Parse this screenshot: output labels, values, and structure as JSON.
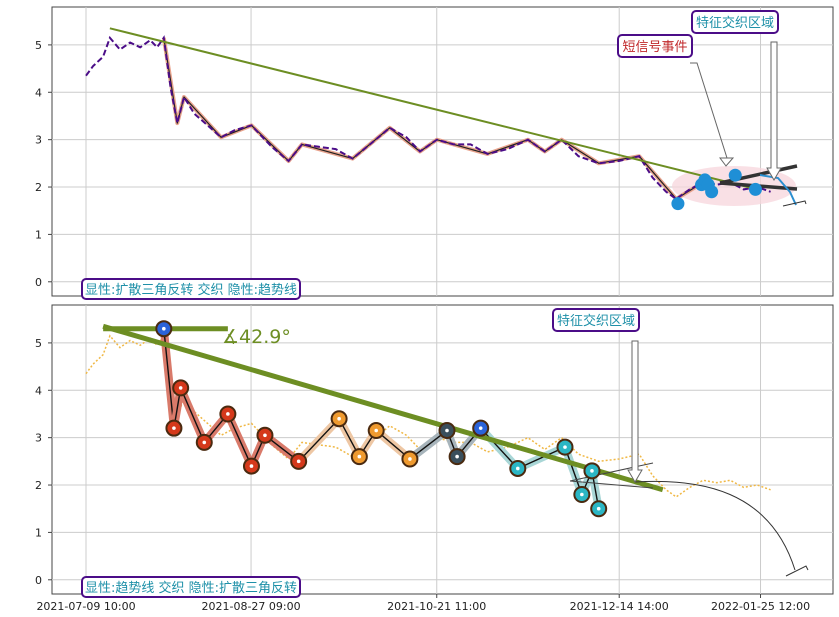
{
  "chart_data": [
    {
      "type": "line",
      "panel": "top",
      "ylim": [
        -0.3,
        5.8
      ],
      "y_ticks": [
        "0",
        "1",
        "2",
        "3",
        "4",
        "5"
      ],
      "x_range": [
        "2021-07-09 10:00",
        "2022-02-16 00:00"
      ],
      "price_series": [
        {
          "x": "2021-07-09 10:00",
          "y": 4.35
        },
        {
          "x": "2021-07-11 12:00",
          "y": 4.55
        },
        {
          "x": "2021-07-14 12:00",
          "y": 4.75
        },
        {
          "x": "2021-07-16 12:00",
          "y": 5.15
        },
        {
          "x": "2021-07-19 12:00",
          "y": 4.9
        },
        {
          "x": "2021-07-22 12:00",
          "y": 5.05
        },
        {
          "x": "2021-07-25 12:00",
          "y": 4.95
        },
        {
          "x": "2021-07-28 12:00",
          "y": 5.1
        },
        {
          "x": "2021-07-30 12:00",
          "y": 4.95
        },
        {
          "x": "2021-08-01 12:00",
          "y": 5.15
        },
        {
          "x": "2021-08-03 12:00",
          "y": 4.1
        },
        {
          "x": "2021-08-05 12:00",
          "y": 3.35
        },
        {
          "x": "2021-08-07 12:00",
          "y": 3.9
        },
        {
          "x": "2021-08-10 12:00",
          "y": 3.55
        },
        {
          "x": "2021-08-14 12:00",
          "y": 3.3
        },
        {
          "x": "2021-08-18 12:00",
          "y": 3.05
        },
        {
          "x": "2021-08-22 12:00",
          "y": 3.2
        },
        {
          "x": "2021-08-27 12:00",
          "y": 3.3
        },
        {
          "x": "2021-09-02 12:00",
          "y": 2.85
        },
        {
          "x": "2021-09-07 12:00",
          "y": 2.55
        },
        {
          "x": "2021-09-11 12:00",
          "y": 2.9
        },
        {
          "x": "2021-09-16 12:00",
          "y": 2.85
        },
        {
          "x": "2021-09-21 12:00",
          "y": 2.8
        },
        {
          "x": "2021-09-26 12:00",
          "y": 2.6
        },
        {
          "x": "2021-10-02 12:00",
          "y": 2.95
        },
        {
          "x": "2021-10-07 12:00",
          "y": 3.25
        },
        {
          "x": "2021-10-12 12:00",
          "y": 3.05
        },
        {
          "x": "2021-10-16 12:00",
          "y": 2.75
        },
        {
          "x": "2021-10-21 12:00",
          "y": 3.0
        },
        {
          "x": "2021-10-26 12:00",
          "y": 2.9
        },
        {
          "x": "2021-10-31 12:00",
          "y": 2.9
        },
        {
          "x": "2021-11-05 12:00",
          "y": 2.7
        },
        {
          "x": "2021-11-11 12:00",
          "y": 2.8
        },
        {
          "x": "2021-11-17 12:00",
          "y": 3.0
        },
        {
          "x": "2021-11-22 12:00",
          "y": 2.75
        },
        {
          "x": "2021-11-27 12:00",
          "y": 3.0
        },
        {
          "x": "2021-12-02 12:00",
          "y": 2.65
        },
        {
          "x": "2021-12-08 12:00",
          "y": 2.5
        },
        {
          "x": "2021-12-14 12:00",
          "y": 2.55
        },
        {
          "x": "2021-12-20 12:00",
          "y": 2.65
        },
        {
          "x": "2021-12-24 12:00",
          "y": 2.2
        },
        {
          "x": "2021-12-28 12:00",
          "y": 1.9
        },
        {
          "x": "2021-12-31 12:00",
          "y": 1.75
        },
        {
          "x": "2022-01-04 12:00",
          "y": 1.95
        },
        {
          "x": "2022-01-08 12:00",
          "y": 2.1
        },
        {
          "x": "2022-01-12 12:00",
          "y": 2.05
        },
        {
          "x": "2022-01-16 12:00",
          "y": 2.1
        },
        {
          "x": "2022-01-20 12:00",
          "y": 1.95
        },
        {
          "x": "2022-01-24 12:00",
          "y": 2.0
        },
        {
          "x": "2022-01-28 12:00",
          "y": 1.9
        }
      ],
      "zigzag": [
        {
          "x": "2021-08-01 12:00",
          "y": 5.15
        },
        {
          "x": "2021-08-05 12:00",
          "y": 3.35
        },
        {
          "x": "2021-08-07 12:00",
          "y": 3.9
        },
        {
          "x": "2021-08-18 12:00",
          "y": 3.05
        },
        {
          "x": "2021-08-27 12:00",
          "y": 3.3
        },
        {
          "x": "2021-09-07 12:00",
          "y": 2.55
        },
        {
          "x": "2021-09-11 12:00",
          "y": 2.9
        },
        {
          "x": "2021-09-26 12:00",
          "y": 2.6
        },
        {
          "x": "2021-10-07 12:00",
          "y": 3.25
        },
        {
          "x": "2021-10-16 12:00",
          "y": 2.75
        },
        {
          "x": "2021-10-21 12:00",
          "y": 3.0
        },
        {
          "x": "2021-11-05 12:00",
          "y": 2.7
        },
        {
          "x": "2021-11-17 12:00",
          "y": 3.0
        },
        {
          "x": "2021-11-22 12:00",
          "y": 2.75
        },
        {
          "x": "2021-11-27 12:00",
          "y": 3.0
        },
        {
          "x": "2021-12-08 12:00",
          "y": 2.5
        },
        {
          "x": "2021-12-20 12:00",
          "y": 2.65
        },
        {
          "x": "2021-12-31 12:00",
          "y": 1.75
        },
        {
          "x": "2022-01-08 12:00",
          "y": 2.1
        }
      ],
      "trend_line": [
        {
          "x": "2021-07-16 12:00",
          "y": 5.35
        },
        {
          "x": "2022-01-24 12:00",
          "y": 1.95
        }
      ],
      "event_points": [
        {
          "x": "2022-01-01 00:00",
          "y": 1.65
        },
        {
          "x": "2022-01-08 00:00",
          "y": 2.05
        },
        {
          "x": "2022-01-09 00:00",
          "y": 2.15
        },
        {
          "x": "2022-01-10 00:00",
          "y": 2.05
        },
        {
          "x": "2022-01-11 00:00",
          "y": 1.9
        },
        {
          "x": "2022-01-18 00:00",
          "y": 2.25
        },
        {
          "x": "2022-01-24 00:00",
          "y": 1.95
        }
      ],
      "annotations": [
        "特征交织区域",
        "短信号事件"
      ],
      "legend_box": "显性:扩散三角反转 交织 隐性:趋势线"
    },
    {
      "type": "line",
      "panel": "bottom",
      "ylim": [
        -0.3,
        5.8
      ],
      "y_ticks": [
        "0",
        "1",
        "2",
        "3",
        "4",
        "5"
      ],
      "x_ticks": [
        "2021-07-09 10:00",
        "2021-08-27 09:00",
        "2021-10-21 11:00",
        "2021-12-14 14:00",
        "2022-01-25 12:00"
      ],
      "angle_label": "∡42.9°",
      "annotation": "特征交织区域",
      "legend_box": "显性:趋势线 交织 隐性:扩散三角反转",
      "nodes": [
        {
          "x": "2021-08-01 12:00",
          "y": 5.3,
          "color": "#2b63d9"
        },
        {
          "x": "2021-08-04 12:00",
          "y": 3.2,
          "color": "#d5391b"
        },
        {
          "x": "2021-08-06 12:00",
          "y": 4.05,
          "color": "#d5391b"
        },
        {
          "x": "2021-08-13 12:00",
          "y": 2.9,
          "color": "#d5391b"
        },
        {
          "x": "2021-08-20 12:00",
          "y": 3.5,
          "color": "#d5391b"
        },
        {
          "x": "2021-08-27 12:00",
          "y": 2.4,
          "color": "#d5391b"
        },
        {
          "x": "2021-08-31 12:00",
          "y": 3.05,
          "color": "#d5391b"
        },
        {
          "x": "2021-09-10 12:00",
          "y": 2.5,
          "color": "#d5391b"
        },
        {
          "x": "2021-09-22 12:00",
          "y": 3.4,
          "color": "#ef9a2f"
        },
        {
          "x": "2021-09-28 12:00",
          "y": 2.6,
          "color": "#ef9a2f"
        },
        {
          "x": "2021-10-03 12:00",
          "y": 3.15,
          "color": "#ef9a2f"
        },
        {
          "x": "2021-10-13 12:00",
          "y": 2.55,
          "color": "#ef9a2f"
        },
        {
          "x": "2021-10-24 12:00",
          "y": 3.15,
          "color": "#3a4f5c"
        },
        {
          "x": "2021-10-27 12:00",
          "y": 2.6,
          "color": "#3a4f5c"
        },
        {
          "x": "2021-11-03 12:00",
          "y": 3.2,
          "color": "#2b63d9"
        },
        {
          "x": "2021-11-14 12:00",
          "y": 2.35,
          "color": "#2bb6c4"
        },
        {
          "x": "2021-11-28 12:00",
          "y": 2.8,
          "color": "#2bb6c4"
        },
        {
          "x": "2021-12-03 12:00",
          "y": 1.8,
          "color": "#2bb6c4"
        },
        {
          "x": "2021-12-06 12:00",
          "y": 2.3,
          "color": "#2bb6c4"
        },
        {
          "x": "2021-12-08 12:00",
          "y": 1.5,
          "color": "#2bb6c4"
        }
      ],
      "trend_line": [
        {
          "x": "2021-07-14 12:00",
          "y": 5.35
        },
        {
          "x": "2021-12-27 12:00",
          "y": 1.9
        }
      ],
      "horizontal_line": [
        {
          "x": "2021-07-14 12:00",
          "y": 5.3
        },
        {
          "x": "2021-08-20 12:00",
          "y": 5.3
        }
      ]
    }
  ]
}
